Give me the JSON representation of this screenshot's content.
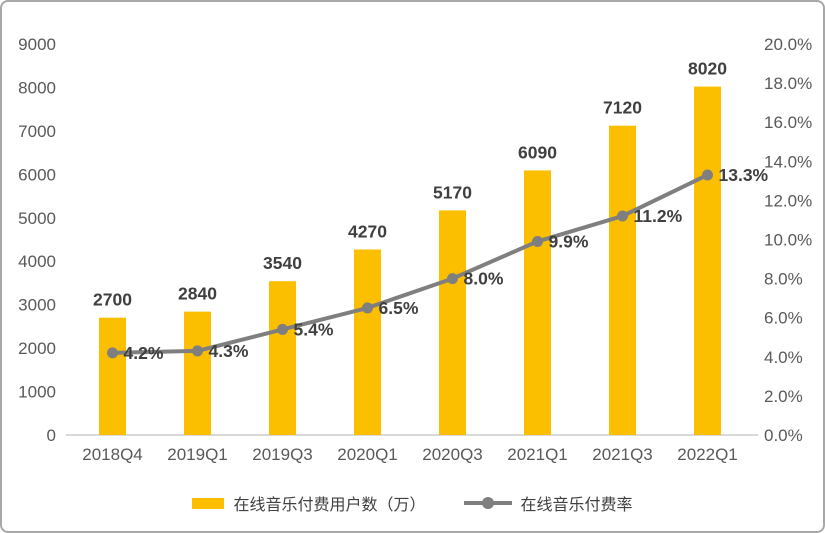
{
  "chart_data": {
    "type": "bar+line",
    "categories": [
      "2018Q4",
      "2019Q1",
      "2019Q3",
      "2020Q1",
      "2020Q3",
      "2021Q1",
      "2021Q3",
      "2022Q1"
    ],
    "series": [
      {
        "name": "在线音乐付费用户数（万）",
        "type": "bar",
        "axis": "left",
        "values": [
          2700,
          2840,
          3540,
          4270,
          5170,
          6090,
          7120,
          8020
        ],
        "labels": [
          "2700",
          "2840",
          "3540",
          "4270",
          "5170",
          "6090",
          "7120",
          "8020"
        ]
      },
      {
        "name": "在线音乐付费率",
        "type": "line",
        "axis": "right",
        "values": [
          4.2,
          4.3,
          5.4,
          6.5,
          8.0,
          9.9,
          11.2,
          13.3
        ],
        "labels": [
          "4.2%",
          "4.3%",
          "5.4%",
          "6.5%",
          "8.0%",
          "9.9%",
          "11.2%",
          "13.3%"
        ]
      }
    ],
    "left_axis": {
      "min": 0,
      "max": 9000,
      "ticks": [
        "9000",
        "8000",
        "7000",
        "6000",
        "5000",
        "4000",
        "3000",
        "2000",
        "1000",
        "0"
      ]
    },
    "right_axis": {
      "min": 0,
      "max": 20,
      "ticks": [
        "20.0%",
        "18.0%",
        "16.0%",
        "14.0%",
        "12.0%",
        "10.0%",
        "8.0%",
        "6.0%",
        "4.0%",
        "2.0%",
        "0.0%"
      ]
    },
    "grid": false,
    "legend_position": "bottom"
  },
  "colors": {
    "bar": "#FCBF00",
    "line": "#7F7F7F",
    "data_label": "#3F3F3F",
    "axis_label": "#595959",
    "baseline": "#D9D9D9",
    "legend_text": "#404040"
  }
}
